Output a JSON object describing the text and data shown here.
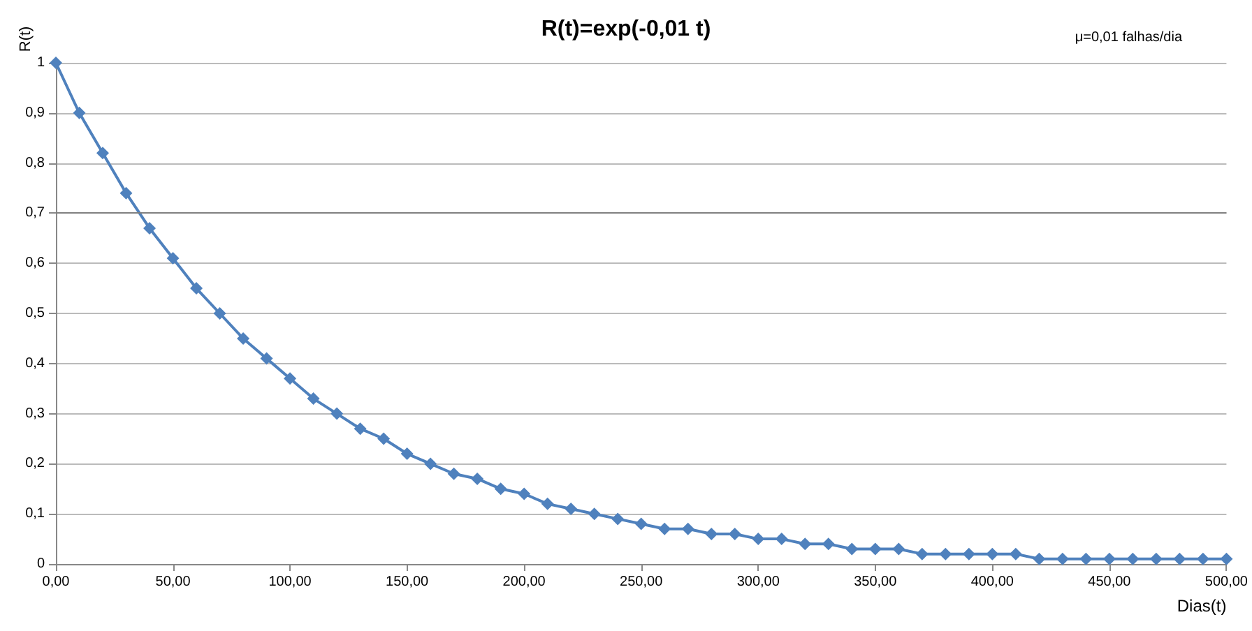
{
  "chart_data": {
    "type": "line",
    "title": "R(t)=exp(-0,01 t)",
    "xlabel": "Dias(t)",
    "ylabel": "R(t)",
    "annotations": [
      "μ=0,01 falhas/dia"
    ],
    "x": [
      0,
      10,
      20,
      30,
      40,
      50,
      60,
      70,
      80,
      90,
      100,
      110,
      120,
      130,
      140,
      150,
      160,
      170,
      180,
      190,
      200,
      210,
      220,
      230,
      240,
      250,
      260,
      270,
      280,
      290,
      300,
      310,
      320,
      330,
      340,
      350,
      360,
      370,
      380,
      390,
      400,
      410,
      420,
      430,
      440,
      450,
      460,
      470,
      480,
      490,
      500
    ],
    "series": [
      {
        "color": "#4f81bd",
        "values": [
          1,
          0.9,
          0.82,
          0.74,
          0.67,
          0.61,
          0.55,
          0.5,
          0.45,
          0.41,
          0.37,
          0.33,
          0.3,
          0.27,
          0.25,
          0.22,
          0.2,
          0.18,
          0.17,
          0.15,
          0.14,
          0.12,
          0.11,
          0.1,
          0.09,
          0.08,
          0.07,
          0.07,
          0.06,
          0.06,
          0.05,
          0.05,
          0.04,
          0.04,
          0.03,
          0.03,
          0.03,
          0.02,
          0.02,
          0.02,
          0.02,
          0.02,
          0.01,
          0.01,
          0.01,
          0.01,
          0.01,
          0.01,
          0.01,
          0.01,
          0.01
        ]
      }
    ],
    "xlim": [
      0,
      500
    ],
    "xticks": [
      {
        "value": 0,
        "label": "0,00"
      },
      {
        "value": 50,
        "label": "50,00"
      },
      {
        "value": 100,
        "label": "100,00"
      },
      {
        "value": 150,
        "label": "150,00"
      },
      {
        "value": 200,
        "label": "200,00"
      },
      {
        "value": 250,
        "label": "250,00"
      },
      {
        "value": 300,
        "label": "300,00"
      },
      {
        "value": 350,
        "label": "350,00"
      },
      {
        "value": 400,
        "label": "400,00"
      },
      {
        "value": 450,
        "label": "450,00"
      },
      {
        "value": 500,
        "label": "500,00"
      }
    ],
    "ylim": [
      0,
      1
    ],
    "yticks": [
      0,
      {
        "value": 0.1,
        "label": "0,1"
      },
      {
        "value": 0.2,
        "label": "0,2"
      },
      {
        "value": 0.3,
        "label": "0,3"
      },
      {
        "value": 0.4,
        "label": "0,4"
      },
      {
        "value": 0.5,
        "label": "0,5"
      },
      {
        "value": 0.6,
        "label": "0,6"
      },
      {
        "value": 0.7,
        "label": "0,7"
      },
      {
        "value": 0.8,
        "label": "0,8"
      },
      {
        "value": 0.9,
        "label": "0,9"
      },
      1
    ],
    "ref_lines": [
      {
        "axis": "y",
        "value": 0.7,
        "color": "#808080"
      }
    ],
    "grid": "y",
    "marker": "diamond",
    "line_style": "solid"
  }
}
